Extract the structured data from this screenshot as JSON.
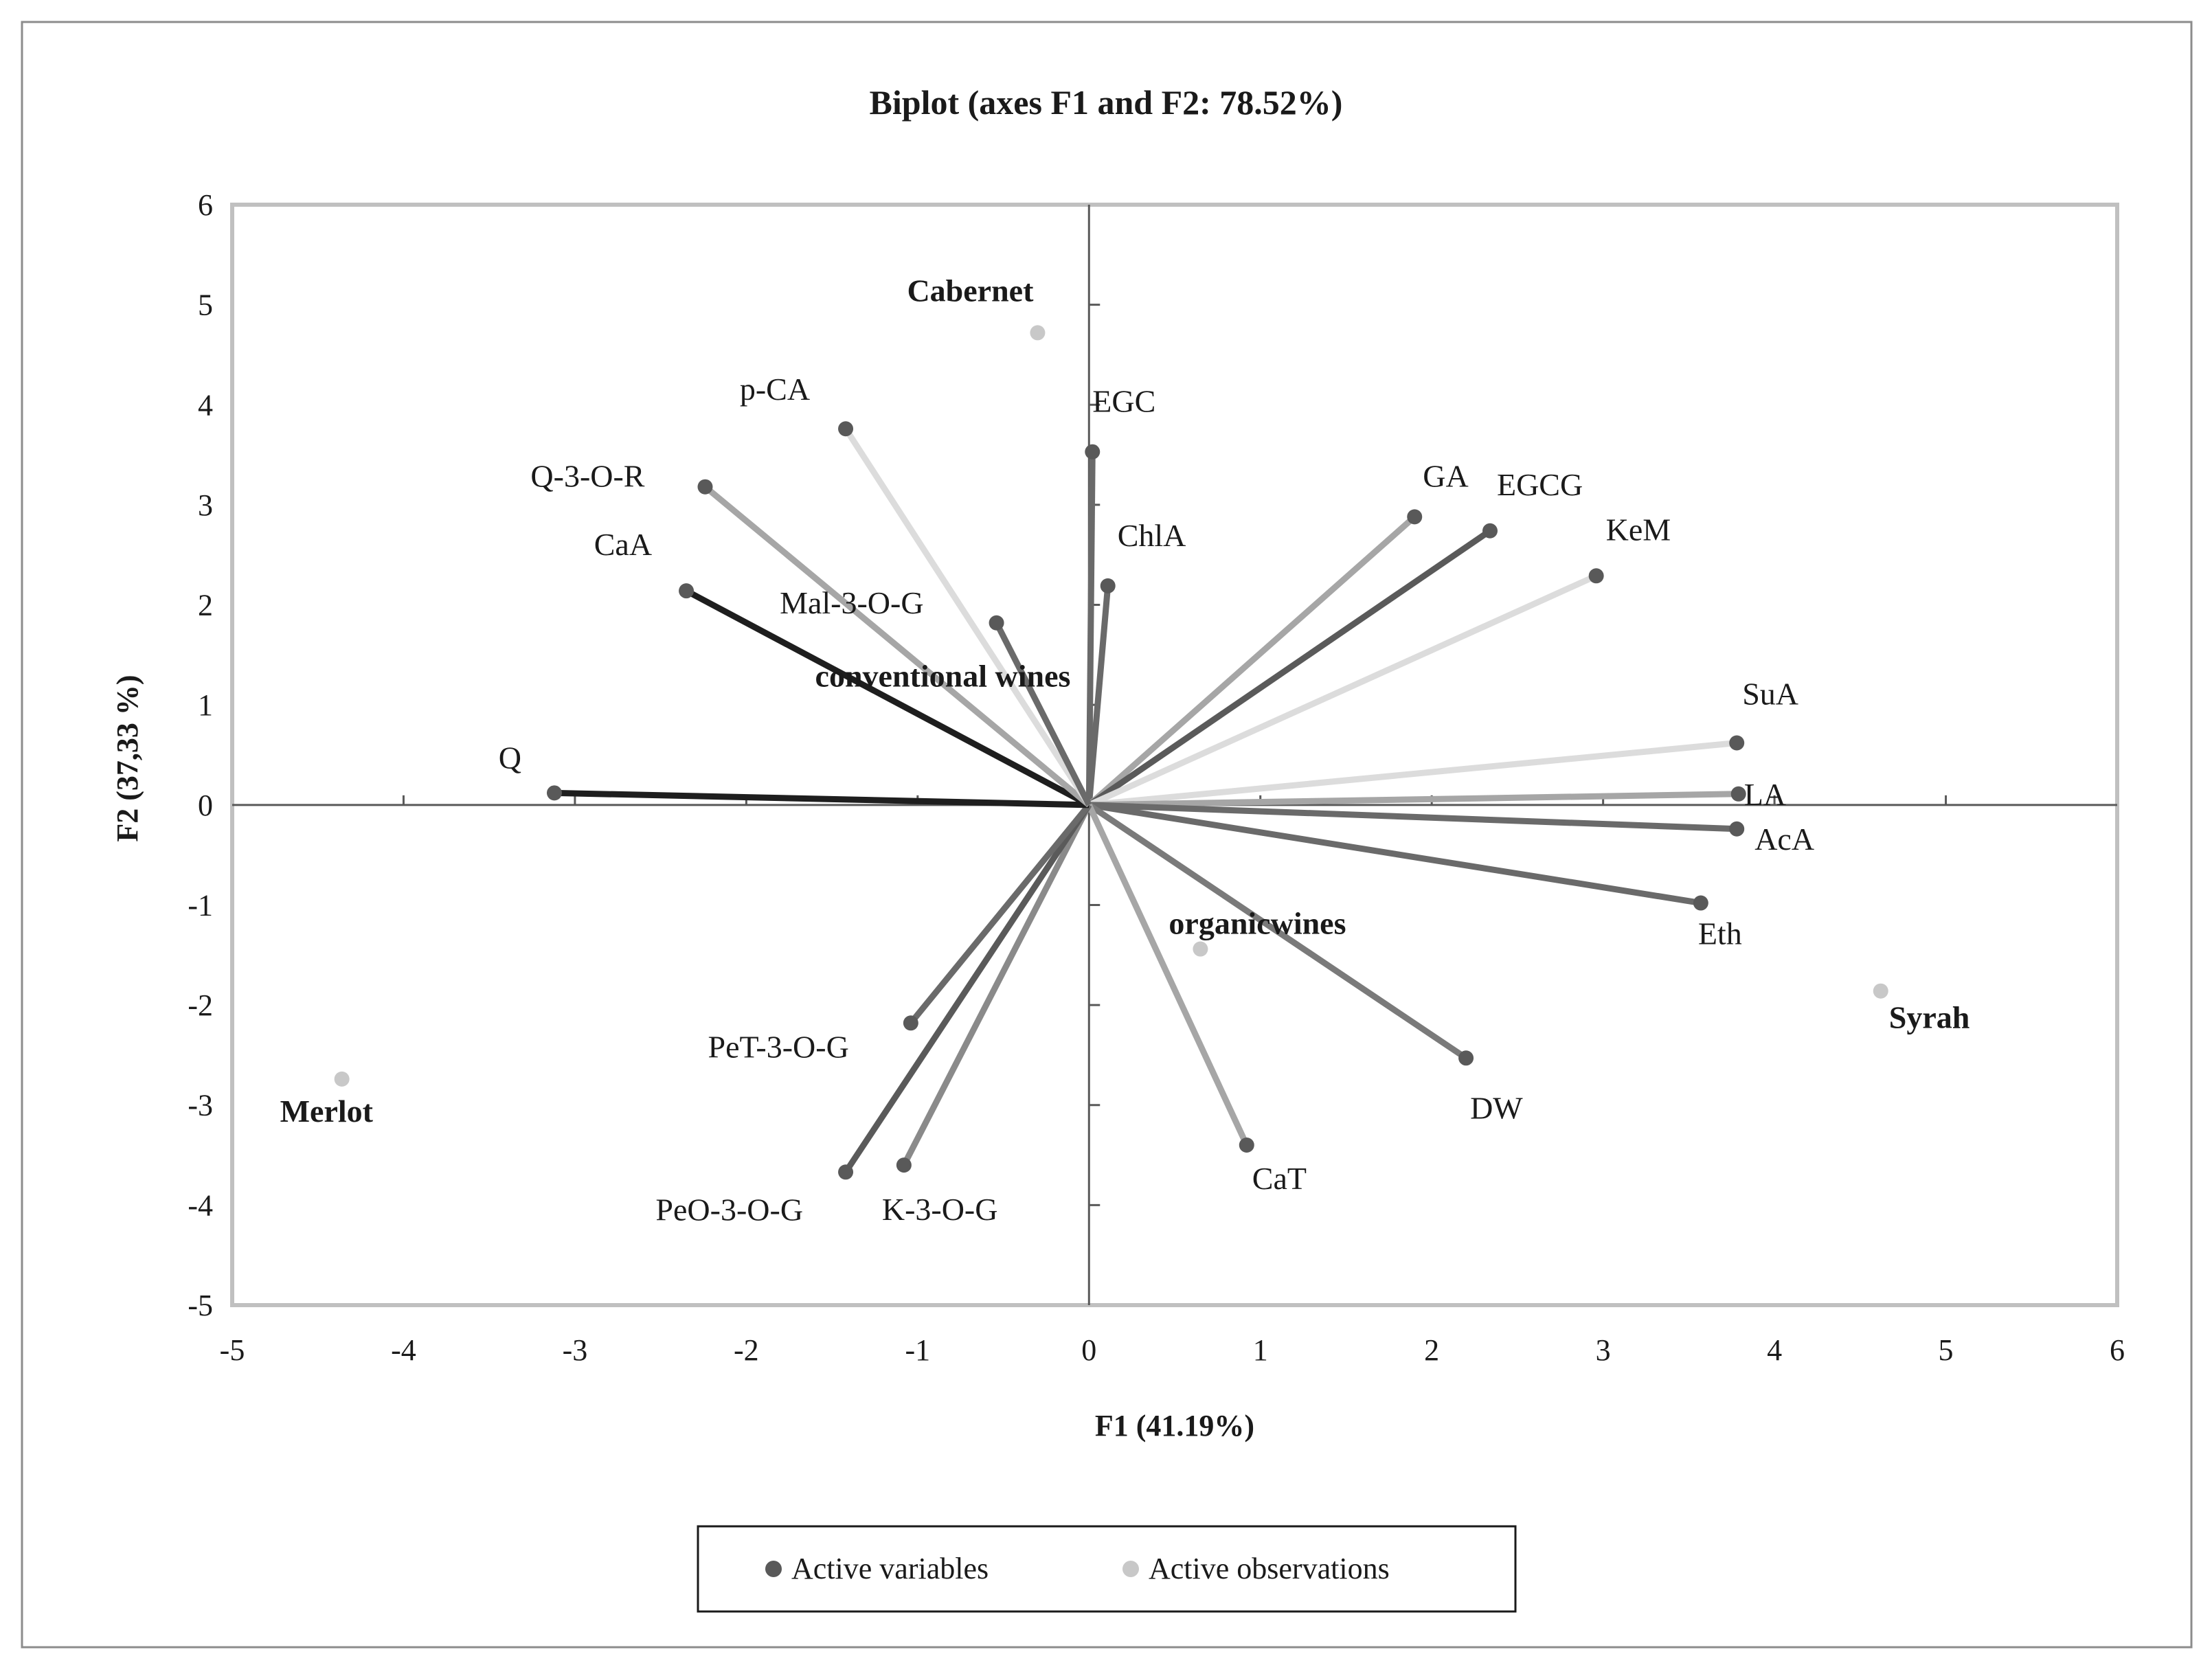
{
  "chart_data": {
    "type": "scatter",
    "subtype": "biplot",
    "title": "Biplot (axes F1 and F2: 78.52%)",
    "xlabel": "F1 (41.19%)",
    "ylabel": "F2 (37,33 %)",
    "xlim": [
      -5,
      6
    ],
    "ylim": [
      -5,
      6
    ],
    "x_ticks": [
      -5,
      -4,
      -3,
      -2,
      -1,
      0,
      1,
      2,
      3,
      4,
      5,
      6
    ],
    "y_ticks": [
      -5,
      -4,
      -3,
      -2,
      -1,
      0,
      1,
      2,
      3,
      4,
      5,
      6
    ],
    "x_tick_labels": [
      "-5",
      "-4",
      "-3",
      "-2",
      "-1",
      "0",
      "1",
      "2",
      "3",
      "4",
      "5",
      "6"
    ],
    "y_tick_labels": [
      "-5",
      "-4",
      "-3",
      "-2",
      "-1",
      "0",
      "1",
      "2",
      "3",
      "4",
      "5",
      "6"
    ],
    "grid": false,
    "legend": {
      "placement": "bottom-center",
      "entries": [
        {
          "label": "Active variables",
          "color": "#595959"
        },
        {
          "label": "Active observations",
          "color": "#c8c8c8"
        }
      ]
    },
    "colors": {
      "frame": "#c0c0c0",
      "axis": "#595959",
      "text": "#1a1a1a"
    },
    "series": [
      {
        "name": "Active variables",
        "kind": "vectors",
        "points": [
          {
            "label": "EGC",
            "x": 0.02,
            "y": 3.53,
            "color": "#6a6a6a"
          },
          {
            "label": "ChlA",
            "x": 0.11,
            "y": 2.19,
            "color": "#6a6a6a"
          },
          {
            "label": "GA",
            "x": 1.9,
            "y": 2.88,
            "color": "#a6a6a6"
          },
          {
            "label": "EGCG",
            "x": 2.34,
            "y": 2.74,
            "color": "#5a5a5a"
          },
          {
            "label": "KeM",
            "x": 2.96,
            "y": 2.29,
            "color": "#dcdcdc"
          },
          {
            "label": "SuA",
            "x": 3.78,
            "y": 0.62,
            "color": "#dcdcdc"
          },
          {
            "label": "LA",
            "x": 3.79,
            "y": 0.11,
            "color": "#a6a6a6"
          },
          {
            "label": "AcA",
            "x": 3.78,
            "y": -0.24,
            "color": "#6a6a6a"
          },
          {
            "label": "Eth",
            "x": 3.57,
            "y": -0.98,
            "color": "#6a6a6a"
          },
          {
            "label": "DW",
            "x": 2.2,
            "y": -2.53,
            "color": "#7a7a7a"
          },
          {
            "label": "CaT",
            "x": 0.92,
            "y": -3.4,
            "color": "#a6a6a6"
          },
          {
            "label": "K-3-O-G",
            "x": -1.08,
            "y": -3.6,
            "color": "#8a8a8a"
          },
          {
            "label": "PeO-3-O-G",
            "x": -1.42,
            "y": -3.67,
            "color": "#5a5a5a"
          },
          {
            "label": "PeT-3-O-G",
            "x": -1.04,
            "y": -2.18,
            "color": "#6a6a6a"
          },
          {
            "label": "Q",
            "x": -3.12,
            "y": 0.12,
            "color": "#1e1e1e"
          },
          {
            "label": "CaA",
            "x": -2.35,
            "y": 2.14,
            "color": "#1e1e1e"
          },
          {
            "label": "Q-3-O-R",
            "x": -2.24,
            "y": 3.18,
            "color": "#a6a6a6"
          },
          {
            "label": "p-CA",
            "x": -1.42,
            "y": 3.76,
            "color": "#dcdcdc"
          },
          {
            "label": "Mal-3-O-G",
            "x": -0.54,
            "y": 1.82,
            "color": "#6a6a6a"
          }
        ]
      },
      {
        "name": "Active observations",
        "kind": "points",
        "points": [
          {
            "label": "Cabernet",
            "x": -0.3,
            "y": 4.72
          },
          {
            "label": "Merlot",
            "x": -4.36,
            "y": -2.74
          },
          {
            "label": "Syrah",
            "x": 4.62,
            "y": -1.86
          },
          {
            "label": "organicwines",
            "x": 0.65,
            "y": -1.44
          },
          {
            "label": "conventional wines",
            "x": -0.5,
            "y": 1.5
          }
        ]
      }
    ]
  }
}
